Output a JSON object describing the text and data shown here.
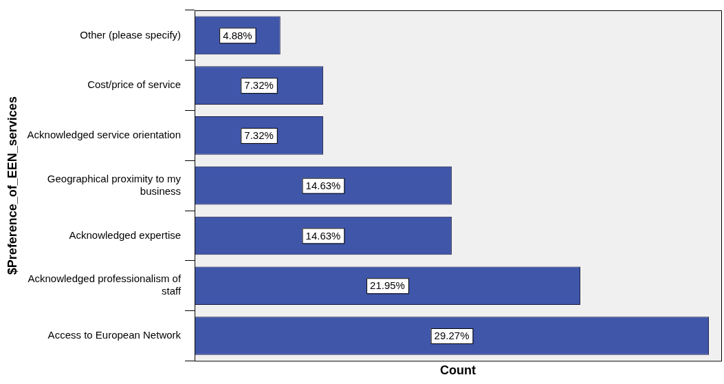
{
  "chart_data": {
    "type": "bar",
    "orientation": "horizontal",
    "xlabel": "Count",
    "ylabel": "$Preference_of_EEN_services",
    "categories": [
      "Other (please specify)",
      "Cost/price of service",
      "Acknowledged service orientation",
      "Geographical proximity to my business",
      "Acknowledged expertise",
      "Acknowledged professionalism of staff",
      "Access to European Network"
    ],
    "values": [
      4.88,
      7.32,
      7.32,
      14.63,
      14.63,
      21.95,
      29.27
    ],
    "color": "#3f56a9",
    "data_labels": true,
    "value_labels": [
      "4.88%",
      "7.32%",
      "7.32%",
      "14.63%",
      "14.63%",
      "21.95%",
      "29.27%"
    ],
    "tick_labels": "y",
    "grid": false,
    "legend": false
  }
}
